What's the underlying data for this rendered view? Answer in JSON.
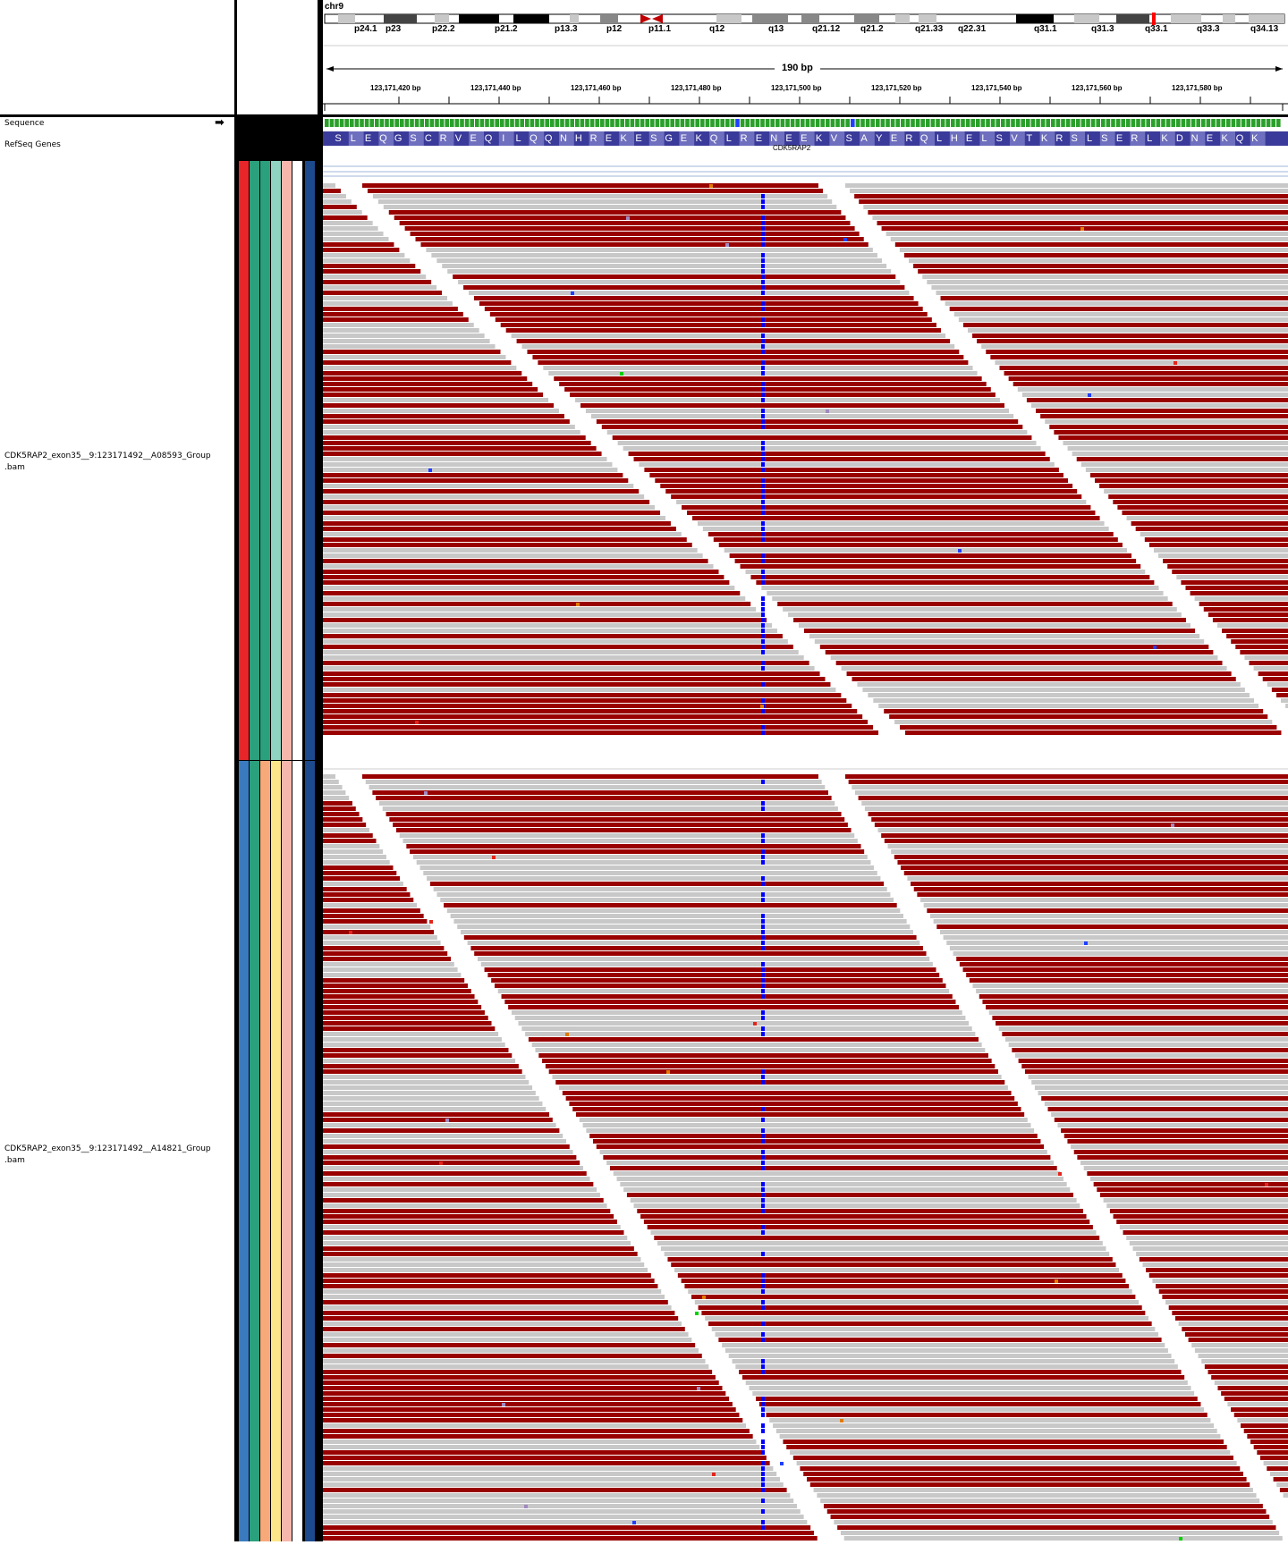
{
  "chromosome": "chr9",
  "cytobands": [
    "p24.1",
    "p23",
    "p22.2",
    "p21.2",
    "p13.3",
    "p12",
    "p11.1",
    "q12",
    "q13",
    "q21.12",
    "q21.2",
    "q21.33",
    "q22.31",
    "q31.1",
    "q31.3",
    "q33.1",
    "q33.3",
    "q34.13"
  ],
  "span_label": "190 bp",
  "ruler_ticks": [
    "123,171,420 bp",
    "123,171,440 bp",
    "123,171,460 bp",
    "123,171,480 bp",
    "123,171,500 bp",
    "123,171,520 bp",
    "123,171,540 bp",
    "123,171,560 bp",
    "123,171,580 bp"
  ],
  "tracks": {
    "sequence": "Sequence",
    "refseq": "RefSeq Genes",
    "bam1": "CDK5RAP2_exon35__9:123171492__A08593_Group",
    "bam1_ext": ".bam",
    "bam2": "CDK5RAP2_exon35__9:123171492__A14821_Group",
    "bam2_ext": ".bam"
  },
  "amino_acids": [
    "S",
    "L",
    "E",
    "Q",
    "G",
    "S",
    "C",
    "R",
    "V",
    "E",
    "Q",
    "I",
    "L",
    "Q",
    "Q",
    "N",
    "H",
    "R",
    "E",
    "K",
    "E",
    "S",
    "G",
    "E",
    "K",
    "Q",
    "L",
    "R",
    "E",
    "N",
    "E",
    "E",
    "K",
    "V",
    "S",
    "A",
    "Y",
    "E",
    "R",
    "Q",
    "L",
    "H",
    "E",
    "L",
    "S",
    "V",
    "T",
    "K",
    "R",
    "S",
    "L",
    "S",
    "E",
    "R",
    "L",
    "K",
    "D",
    "N",
    "E",
    "K",
    "Q",
    "K"
  ],
  "gene_name": "CDK5RAP2",
  "colors": {
    "read_dark": "#990000",
    "read_light": "#c8c8c8",
    "variant": "#0000ff",
    "aa_dark": "#3a3a9a",
    "aa_light": "#6f6fbf",
    "group1_attrs": [
      "#e8262a",
      "#2ba07c",
      "#2ba07c",
      "#8fd3c0",
      "#f7b6ac",
      "#ffffff",
      "#1c4a8c"
    ],
    "group2_attrs": [
      "#3a7bbf",
      "#2ba07c",
      "#f7a97a",
      "#fde68a",
      "#f7b6ac",
      "#ffffff",
      "#1c4a8c"
    ]
  }
}
